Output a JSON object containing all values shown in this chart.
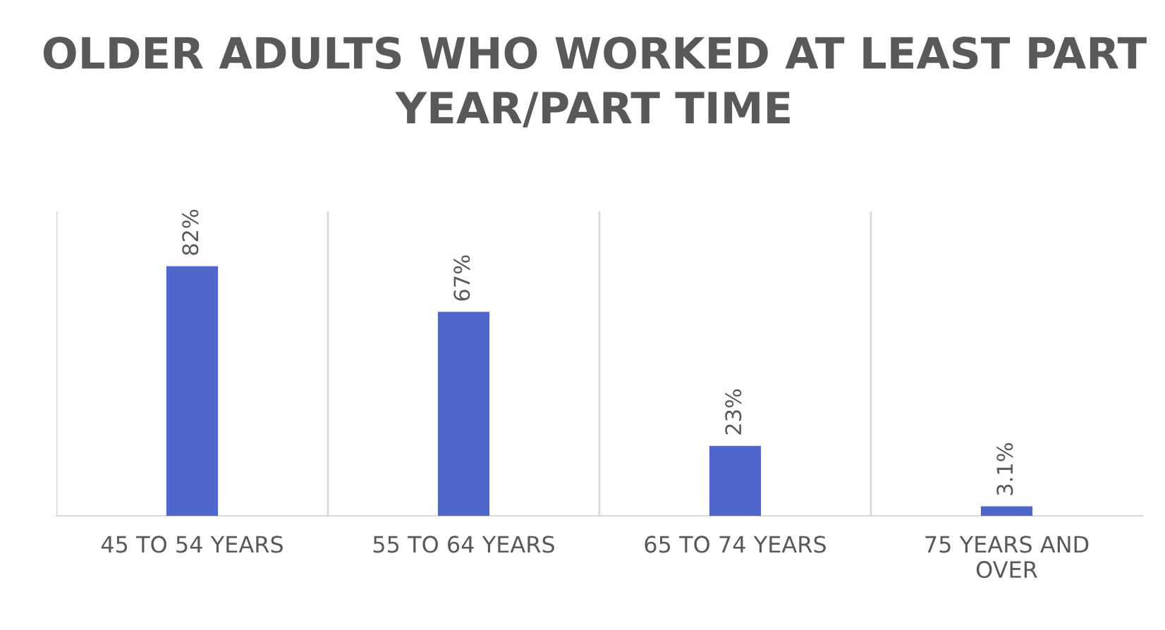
{
  "chart_data": {
    "type": "bar",
    "title": "OLDER ADULTS WHO WORKED AT LEAST PART YEAR/PART TIME",
    "categories": [
      "45 TO 54 YEARS",
      "55 TO 64 YEARS",
      "65 TO 74 YEARS",
      "75 YEARS AND OVER"
    ],
    "values": [
      82,
      67,
      23,
      3.1
    ],
    "value_labels": [
      "82%",
      "67%",
      "23%",
      "3.1%"
    ],
    "color": "#4f67cd",
    "ylim": [
      0,
      100
    ],
    "grid": "x",
    "tick_labels": "x"
  }
}
